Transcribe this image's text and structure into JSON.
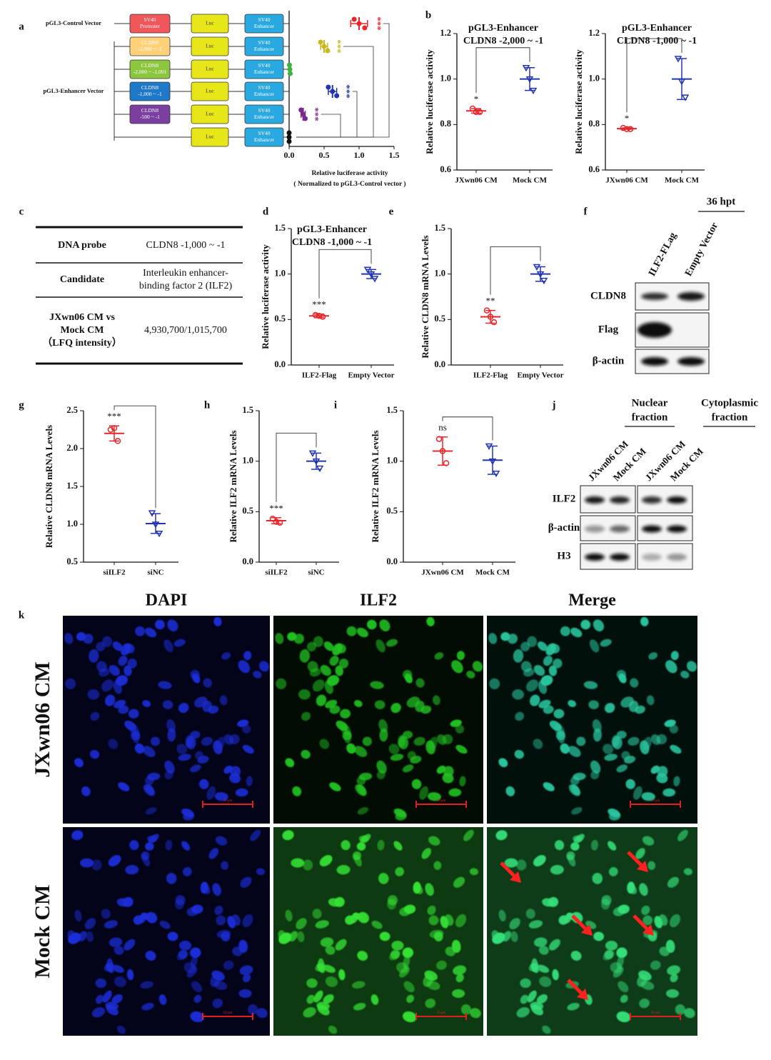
{
  "panel_labels": [
    "a",
    "b",
    "c",
    "d",
    "e",
    "f",
    "g",
    "h",
    "i",
    "j",
    "k"
  ],
  "chart_data": [
    {
      "type": "constructs",
      "horizontal": true,
      "group_labels": [
        "pGL3-Control Vector",
        "pGL3-Enhancer Vector"
      ],
      "constructs": [
        [
          {
            "lines": [
              "SV40",
              "Promoter"
            ],
            "color": "#f0575a",
            "text_color": "#ffffff"
          },
          {
            "lines": [
              "Luc"
            ],
            "color": "#e6e619",
            "text_color": "#333333"
          },
          {
            "lines": [
              "SV40",
              "Enhancer"
            ],
            "color": "#29a9e0",
            "text_color": "#ffffff"
          }
        ],
        [
          {
            "lines": [
              "CLDN8",
              "-2,000 ~ -1"
            ],
            "color": "#ffd27a",
            "text_color": "#ffffff"
          },
          {
            "lines": [
              "Luc"
            ],
            "color": "#e6e619",
            "text_color": "#333333"
          },
          {
            "lines": [
              "SV40",
              "Enhancer"
            ],
            "color": "#29a9e0",
            "text_color": "#ffffff"
          }
        ],
        [
          {
            "lines": [
              "CLDN8",
              "-2,000 ~ -1,001"
            ],
            "color": "#8cc63f",
            "text_color": "#ffffff"
          },
          {
            "lines": [
              "Luc"
            ],
            "color": "#e6e619",
            "text_color": "#333333"
          },
          {
            "lines": [
              "SV40",
              "Enhancer"
            ],
            "color": "#29a9e0",
            "text_color": "#ffffff"
          }
        ],
        [
          {
            "lines": [
              "CLDN8",
              "-1,000 ~ -1"
            ],
            "color": "#1f78c8",
            "text_color": "#ffffff"
          },
          {
            "lines": [
              "Luc"
            ],
            "color": "#e6e619",
            "text_color": "#333333"
          },
          {
            "lines": [
              "SV40",
              "Enhancer"
            ],
            "color": "#29a9e0",
            "text_color": "#ffffff"
          }
        ],
        [
          {
            "lines": [
              "CLDN8",
              "-500 ~ -1"
            ],
            "color": "#7b3fa0",
            "text_color": "#ffffff"
          },
          {
            "lines": [
              "Luc"
            ],
            "color": "#e6e619",
            "text_color": "#333333"
          },
          {
            "lines": [
              "SV40",
              "Enhancer"
            ],
            "color": "#29a9e0",
            "text_color": "#ffffff"
          }
        ],
        [
          {
            "lines": [
              "Luc"
            ],
            "color": "#e6e619",
            "text_color": "#333333"
          },
          {
            "lines": [
              "SV40",
              "Enhancer"
            ],
            "color": "#29a9e0",
            "text_color": "#ffffff"
          }
        ]
      ],
      "values": [
        1.0,
        0.5,
        0.01,
        0.62,
        0.2,
        0.0
      ],
      "errors": [
        0.12,
        0.05,
        0.005,
        0.06,
        0.03,
        0.0
      ],
      "points": [
        [
          0.93,
          1.0,
          1.08
        ],
        [
          0.45,
          0.5,
          0.55
        ],
        [
          0.005,
          0.01,
          0.015
        ],
        [
          0.56,
          0.62,
          0.68
        ],
        [
          0.17,
          0.2,
          0.23
        ],
        [
          0.0,
          0.0,
          0.0
        ]
      ],
      "colors": [
        "#e8262a",
        "#c8b820",
        "#3db23d",
        "#2234b0",
        "#7b2a8c",
        "#111111"
      ],
      "annotations": [
        "***",
        "***",
        null,
        "***",
        "***",
        null
      ],
      "xlabel": [
        "Relative luciferase activity",
        "( Normalized to pGL3-Control vector )"
      ],
      "xlim": [
        0,
        1.5
      ],
      "xticks": [
        {
          "value": 0,
          "label": "0.0"
        },
        0.5,
        {
          "value": 1,
          "label": "1.0"
        },
        1.5
      ]
    },
    {
      "type": "dotplot",
      "title": [
        "pGL3-Enhancer",
        "CLDN8 -2,000 ~ -1"
      ],
      "ylabel": "Relative luciferase activity",
      "categories": [
        "JXwn06 CM",
        "Mock CM"
      ],
      "values": [
        0.86,
        1.0
      ],
      "errors": [
        0.01,
        0.05
      ],
      "points": [
        [
          0.87,
          0.855,
          0.855
        ],
        [
          1.05,
          1.0,
          0.95
        ]
      ],
      "colors": [
        "#e8262a",
        "#2234b0"
      ],
      "annotation": "*",
      "ylim": [
        0.6,
        1.2
      ],
      "yticks": [
        0.6,
        0.8,
        {
          "value": 1,
          "label": "1.0"
        },
        1.2
      ]
    },
    {
      "type": "dotplot",
      "title": [
        "pGL3-Enhancer",
        "CLDN8 -1,000 ~ -1"
      ],
      "ylabel": "Relative luciferase activity",
      "categories": [
        "JXwn06 CM",
        "Mock CM"
      ],
      "values": [
        0.782,
        1.0
      ],
      "errors": [
        0.003,
        0.09
      ],
      "points": [
        [
          0.785,
          0.78,
          0.78
        ],
        [
          1.09,
          0.99,
          0.92
        ]
      ],
      "colors": [
        "#e8262a",
        "#2234b0"
      ],
      "annotation": "*",
      "ylim": [
        0.6,
        1.2
      ],
      "yticks": [
        0.6,
        0.8,
        {
          "value": 1,
          "label": "1.0"
        },
        1.2
      ]
    },
    {
      "type": "dotplot",
      "title": [
        "pGL3-Enhancer",
        "CLDN8 -1,000 ~ -1"
      ],
      "ylabel": "Relative luciferase activity",
      "categories": [
        "ILF2-Flag",
        "Empty Vector"
      ],
      "values": [
        0.54,
        1.0
      ],
      "errors": [
        0.02,
        0.05
      ],
      "points": [
        [
          0.55,
          0.54,
          0.53
        ],
        [
          1.05,
          1.0,
          0.95
        ]
      ],
      "colors": [
        "#e8262a",
        "#2234b0"
      ],
      "annotation": "***",
      "ylim": [
        0,
        1.5
      ],
      "yticks": [
        {
          "value": 0,
          "label": "0.0"
        },
        0.5,
        {
          "value": 1,
          "label": "1.0"
        },
        1.5
      ]
    },
    {
      "type": "dotplot",
      "ylabel": "Relative CLDN8 mRNA Levels",
      "categories": [
        "ILF2-Flag",
        "Empty Vector"
      ],
      "values": [
        0.53,
        1.0
      ],
      "errors": [
        0.07,
        0.08
      ],
      "points": [
        [
          0.6,
          0.53,
          0.47
        ],
        [
          1.08,
          1.0,
          0.93
        ]
      ],
      "colors": [
        "#e8262a",
        "#2234b0"
      ],
      "annotation": "**",
      "ylim": [
        0,
        1.5
      ],
      "yticks": [
        {
          "value": 0,
          "label": "0.0"
        },
        0.5,
        {
          "value": 1,
          "label": "1.0"
        },
        1.5
      ]
    },
    {
      "type": "dotplot",
      "ylabel": "Relative CLDN8 mRNA Levels",
      "categories": [
        "siILF2",
        "siNC"
      ],
      "values": [
        2.2,
        1.01
      ],
      "errors": [
        0.1,
        0.13
      ],
      "points": [
        [
          2.25,
          2.27,
          2.1
        ],
        [
          1.15,
          1.0,
          0.88
        ]
      ],
      "colors": [
        "#e8262a",
        "#2234b0"
      ],
      "annotation": "***",
      "ylim": [
        0.5,
        2.5
      ],
      "yticks": [
        0.5,
        {
          "value": 1,
          "label": "1.0"
        },
        1.5,
        {
          "value": 2,
          "label": "2.0"
        },
        2.5
      ]
    },
    {
      "type": "dotplot",
      "ylabel": "Relative ILF2 mRNA Levels",
      "categories": [
        "siILF2",
        "siNC"
      ],
      "values": [
        0.41,
        1.0
      ],
      "errors": [
        0.03,
        0.08
      ],
      "points": [
        [
          0.43,
          0.4,
          0.39
        ],
        [
          1.08,
          1.0,
          0.93
        ]
      ],
      "colors": [
        "#e8262a",
        "#2234b0"
      ],
      "annotation": "***",
      "ylim": [
        0,
        1.5
      ],
      "yticks": [
        {
          "value": 0,
          "label": "0.0"
        },
        0.5,
        {
          "value": 1,
          "label": "1.0"
        },
        1.5
      ]
    },
    {
      "type": "dotplot",
      "ylabel": "Relative ILF2 mRNA Levels",
      "categories": [
        "JXwn06 CM",
        "Mock CM"
      ],
      "values": [
        1.1,
        1.01
      ],
      "errors": [
        0.14,
        0.14
      ],
      "points": [
        [
          1.22,
          1.1,
          0.98
        ],
        [
          1.15,
          1.0,
          0.88
        ]
      ],
      "colors": [
        "#e8262a",
        "#2234b0"
      ],
      "annotation": "ns",
      "ylim": [
        0,
        1.5
      ],
      "yticks": [
        {
          "value": 0,
          "label": "0.0"
        },
        0.5,
        {
          "value": 1,
          "label": "1.0"
        },
        1.5
      ]
    }
  ],
  "table": {
    "rows": [
      [
        [
          "DNA probe"
        ],
        [
          "CLDN8 -1,000 ~ -1"
        ]
      ],
      [
        [
          "Candidate"
        ],
        [
          "Interleukin enhancer-",
          "binding factor 2 (ILF2)"
        ]
      ],
      [
        [
          "JXwn06 CM vs",
          "Mock CM",
          "（LFQ intensity）"
        ],
        [
          "4,930,700/1,015,700"
        ]
      ]
    ]
  },
  "blot_f": {
    "header": "36 hpt",
    "lanes": [
      "ILF2-FLag",
      "Empty Vector"
    ],
    "rows": [
      "CLDN8",
      "Flag",
      "β-actin"
    ]
  },
  "blot_j": {
    "fractions": [
      [
        "Nuclear",
        "fraction"
      ],
      [
        "Cytoplasmic",
        "fraction"
      ]
    ],
    "lanes": [
      "JXwn06 CM",
      "Mock CM",
      "JXwn06 CM",
      "Mock CM"
    ],
    "rows": [
      "ILF2",
      "β-actin",
      "H3"
    ]
  },
  "microscopy": {
    "columns": [
      "DAPI",
      "ILF2",
      "Merge"
    ],
    "rows": [
      "JXwn06 CM",
      "Mock CM"
    ],
    "scale_bar": "50 μm"
  }
}
